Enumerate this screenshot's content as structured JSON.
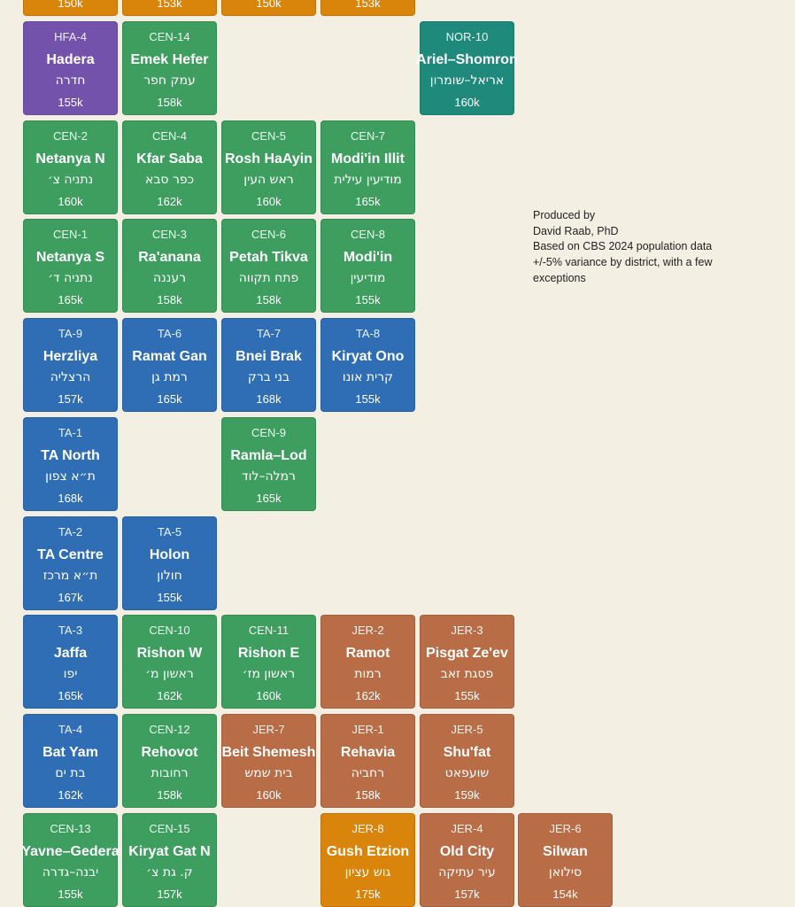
{
  "colors": {
    "background": "#f4efe3",
    "purple": "#7352ac",
    "green": "#3d9e5f",
    "teal": "#1f8a7c",
    "blue": "#2f6eb5",
    "copper": "#b86d47",
    "orange": "#d9850c",
    "text": "#ffffff"
  },
  "credits": {
    "line1": "Produced by",
    "line2": "David Raab, PhD",
    "line3": "Based on CBS 2024 population data",
    "line4": "+/-5% variance by district, with a few exceptions"
  },
  "districts": [
    {
      "code": "",
      "name": "",
      "hebrew": "",
      "population": "150k",
      "color": "orange",
      "col": 0,
      "row": 0
    },
    {
      "code": "",
      "name": "",
      "hebrew": "",
      "population": "153k",
      "color": "orange",
      "col": 1,
      "row": 0
    },
    {
      "code": "",
      "name": "",
      "hebrew": "",
      "population": "150k",
      "color": "orange",
      "col": 2,
      "row": 0
    },
    {
      "code": "",
      "name": "",
      "hebrew": "",
      "population": "153k",
      "color": "orange",
      "col": 3,
      "row": 0
    },
    {
      "code": "HFA-4",
      "name": "Hadera",
      "hebrew": "חדרה",
      "population": "155k",
      "color": "purple",
      "col": 0,
      "row": 1
    },
    {
      "code": "CEN-14",
      "name": "Emek Hefer",
      "hebrew": "עמק חפר",
      "population": "158k",
      "color": "green",
      "col": 1,
      "row": 1
    },
    {
      "code": "NOR-10",
      "name": "Ariel–Shomron",
      "hebrew": "אריאל–שומרון",
      "population": "160k",
      "color": "teal",
      "col": 4,
      "row": 1
    },
    {
      "code": "CEN-2",
      "name": "Netanya N",
      "hebrew": "נתניה צ׳",
      "population": "160k",
      "color": "green",
      "col": 0,
      "row": 2
    },
    {
      "code": "CEN-4",
      "name": "Kfar Saba",
      "hebrew": "כפר סבא",
      "population": "162k",
      "color": "green",
      "col": 1,
      "row": 2
    },
    {
      "code": "CEN-5",
      "name": "Rosh HaAyin",
      "hebrew": "ראש העין",
      "population": "160k",
      "color": "green",
      "col": 2,
      "row": 2
    },
    {
      "code": "CEN-7",
      "name": "Modi'in Illit",
      "hebrew": "מודיעין עילית",
      "population": "165k",
      "color": "green",
      "col": 3,
      "row": 2
    },
    {
      "code": "CEN-1",
      "name": "Netanya S",
      "hebrew": "נתניה ד׳",
      "population": "165k",
      "color": "green",
      "col": 0,
      "row": 3
    },
    {
      "code": "CEN-3",
      "name": "Ra'anana",
      "hebrew": "רעננה",
      "population": "158k",
      "color": "green",
      "col": 1,
      "row": 3
    },
    {
      "code": "CEN-6",
      "name": "Petah Tikva",
      "hebrew": "פתח תקווה",
      "population": "158k",
      "color": "green",
      "col": 2,
      "row": 3
    },
    {
      "code": "CEN-8",
      "name": "Modi'in",
      "hebrew": "מודיעין",
      "population": "155k",
      "color": "green",
      "col": 3,
      "row": 3
    },
    {
      "code": "TA-9",
      "name": "Herzliya",
      "hebrew": "הרצליה",
      "population": "157k",
      "color": "blue",
      "col": 0,
      "row": 4
    },
    {
      "code": "TA-6",
      "name": "Ramat Gan",
      "hebrew": "רמת גן",
      "population": "165k",
      "color": "blue",
      "col": 1,
      "row": 4
    },
    {
      "code": "TA-7",
      "name": "Bnei Brak",
      "hebrew": "בני ברק",
      "population": "168k",
      "color": "blue",
      "col": 2,
      "row": 4
    },
    {
      "code": "TA-8",
      "name": "Kiryat Ono",
      "hebrew": "קרית אונו",
      "population": "155k",
      "color": "blue",
      "col": 3,
      "row": 4
    },
    {
      "code": "TA-1",
      "name": "TA North",
      "hebrew": "ת״א צפון",
      "population": "168k",
      "color": "blue",
      "col": 0,
      "row": 5
    },
    {
      "code": "CEN-9",
      "name": "Ramla–Lod",
      "hebrew": "רמלה–לוד",
      "population": "165k",
      "color": "green",
      "col": 2,
      "row": 5
    },
    {
      "code": "TA-2",
      "name": "TA Centre",
      "hebrew": "ת״א מרכז",
      "population": "167k",
      "color": "blue",
      "col": 0,
      "row": 6
    },
    {
      "code": "TA-5",
      "name": "Holon",
      "hebrew": "חולון",
      "population": "155k",
      "color": "blue",
      "col": 1,
      "row": 6
    },
    {
      "code": "TA-3",
      "name": "Jaffa",
      "hebrew": "יפו",
      "population": "165k",
      "color": "blue",
      "col": 0,
      "row": 7
    },
    {
      "code": "CEN-10",
      "name": "Rishon W",
      "hebrew": "ראשון מ׳",
      "population": "162k",
      "color": "green",
      "col": 1,
      "row": 7
    },
    {
      "code": "CEN-11",
      "name": "Rishon E",
      "hebrew": "ראשון מז׳",
      "population": "160k",
      "color": "green",
      "col": 2,
      "row": 7
    },
    {
      "code": "JER-2",
      "name": "Ramot",
      "hebrew": "רמות",
      "population": "162k",
      "color": "copper",
      "col": 3,
      "row": 7
    },
    {
      "code": "JER-3",
      "name": "Pisgat Ze'ev",
      "hebrew": "פסגת זאב",
      "population": "155k",
      "color": "copper",
      "col": 4,
      "row": 7
    },
    {
      "code": "TA-4",
      "name": "Bat Yam",
      "hebrew": "בת ים",
      "population": "162k",
      "color": "blue",
      "col": 0,
      "row": 8
    },
    {
      "code": "CEN-12",
      "name": "Rehovot",
      "hebrew": "רחובות",
      "population": "158k",
      "color": "green",
      "col": 1,
      "row": 8
    },
    {
      "code": "JER-7",
      "name": "Beit Shemesh",
      "hebrew": "בית שמש",
      "population": "160k",
      "color": "copper",
      "col": 2,
      "row": 8
    },
    {
      "code": "JER-1",
      "name": "Rehavia",
      "hebrew": "רחביה",
      "population": "158k",
      "color": "copper",
      "col": 3,
      "row": 8
    },
    {
      "code": "JER-5",
      "name": "Shu'fat",
      "hebrew": "שועפאט",
      "population": "159k",
      "color": "copper",
      "col": 4,
      "row": 8
    },
    {
      "code": "CEN-13",
      "name": "Yavne–Gedera",
      "hebrew": "יבנה–גדרה",
      "population": "155k",
      "color": "green",
      "col": 0,
      "row": 9
    },
    {
      "code": "CEN-15",
      "name": "Kiryat Gat N",
      "hebrew": "ק. גת צ׳",
      "population": "157k",
      "color": "green",
      "col": 1,
      "row": 9
    },
    {
      "code": "JER-8",
      "name": "Gush Etzion",
      "hebrew": "גוש עציון",
      "population": "175k",
      "color": "orange",
      "col": 3,
      "row": 9
    },
    {
      "code": "JER-4",
      "name": "Old City",
      "hebrew": "עיר עתיקה",
      "population": "157k",
      "color": "copper",
      "col": 4,
      "row": 9
    },
    {
      "code": "JER-6",
      "name": "Silwan",
      "hebrew": "סילואן",
      "population": "154k",
      "color": "copper",
      "col": 5,
      "row": 9
    }
  ]
}
